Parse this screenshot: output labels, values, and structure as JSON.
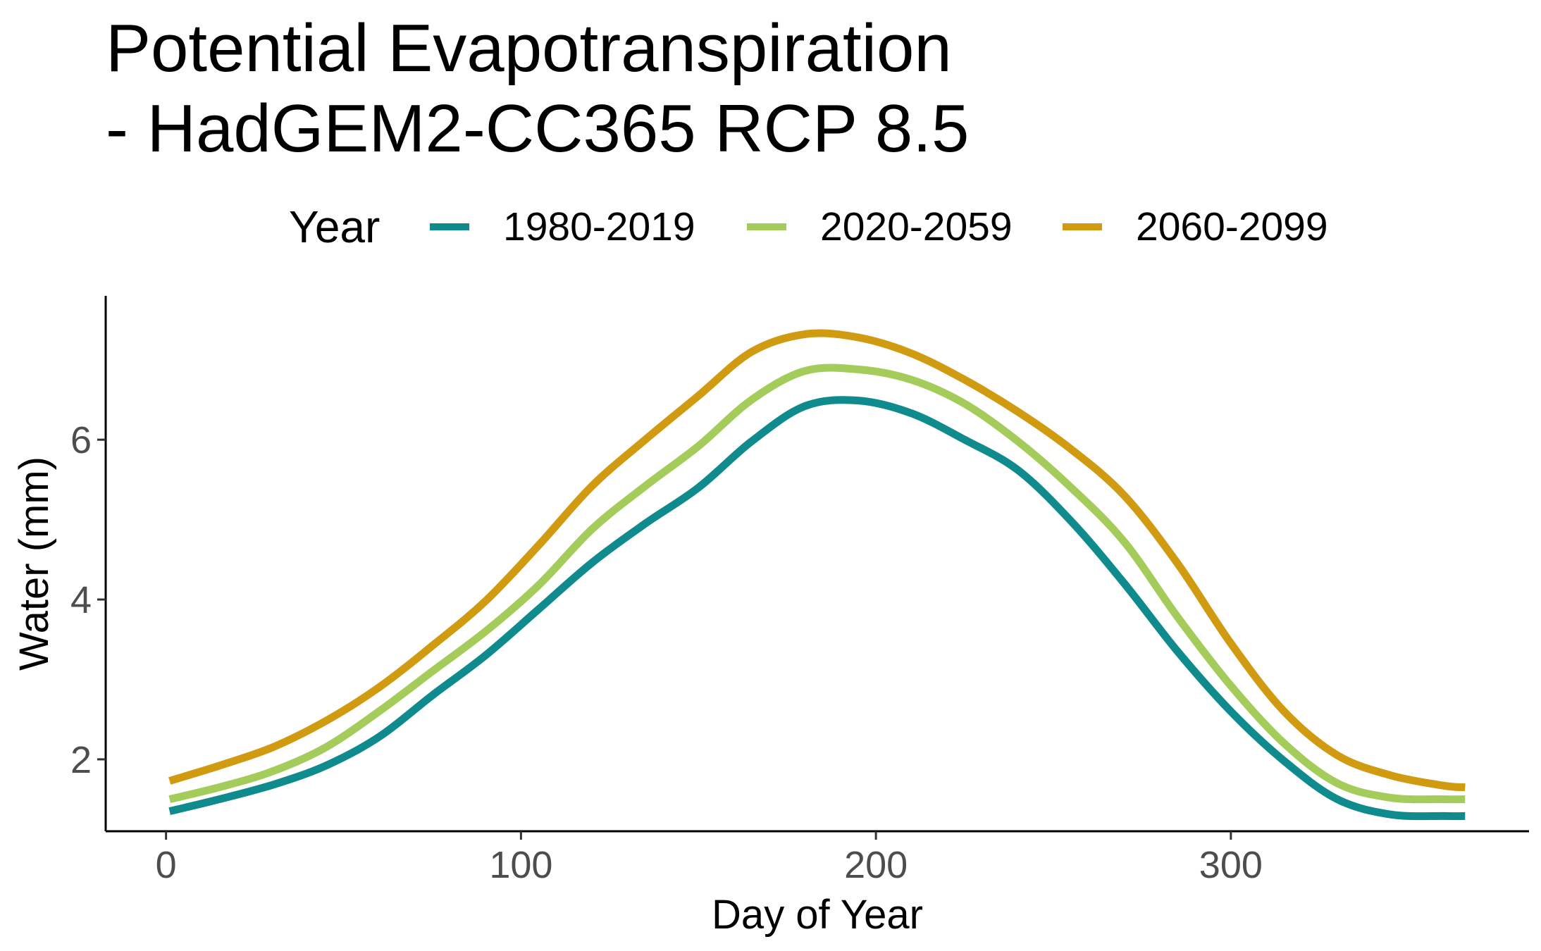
{
  "chart_data": {
    "type": "line",
    "title_line1": "Potential Evapotranspiration",
    "title_line2": "- HadGEM2-CC365 RCP 8.5",
    "xlabel": "Day of Year",
    "ylabel": "Water (mm)",
    "xlim": [
      -17,
      384
    ],
    "ylim": [
      1.1,
      7.8
    ],
    "x_ticks": [
      0,
      100,
      200,
      300
    ],
    "y_ticks": [
      2,
      4,
      6
    ],
    "grid": false,
    "legend": {
      "title": "Year",
      "position": "top"
    },
    "x": [
      1,
      15,
      30,
      45,
      60,
      75,
      90,
      105,
      120,
      135,
      150,
      165,
      180,
      195,
      210,
      225,
      240,
      255,
      270,
      285,
      300,
      315,
      330,
      345,
      360,
      366
    ],
    "series": [
      {
        "name": "1980-2019",
        "color": "#0f8b8d",
        "values": [
          1.35,
          1.5,
          1.68,
          1.92,
          2.28,
          2.8,
          3.3,
          3.88,
          4.46,
          4.95,
          5.4,
          5.98,
          6.42,
          6.49,
          6.33,
          6.0,
          5.62,
          4.98,
          4.2,
          3.35,
          2.6,
          1.98,
          1.5,
          1.31,
          1.29,
          1.29
        ]
      },
      {
        "name": "2020-2059",
        "color": "#a4cc5a",
        "values": [
          1.5,
          1.65,
          1.85,
          2.15,
          2.6,
          3.1,
          3.6,
          4.18,
          4.88,
          5.42,
          5.92,
          6.5,
          6.86,
          6.88,
          6.75,
          6.45,
          5.98,
          5.4,
          4.72,
          3.78,
          2.92,
          2.2,
          1.7,
          1.52,
          1.5,
          1.5
        ]
      },
      {
        "name": "2060-2099",
        "color": "#d19b11",
        "values": [
          1.73,
          1.92,
          2.15,
          2.48,
          2.9,
          3.42,
          3.98,
          4.68,
          5.42,
          6.0,
          6.55,
          7.1,
          7.32,
          7.28,
          7.08,
          6.75,
          6.35,
          5.88,
          5.3,
          4.45,
          3.45,
          2.6,
          2.05,
          1.8,
          1.67,
          1.65
        ]
      }
    ]
  }
}
